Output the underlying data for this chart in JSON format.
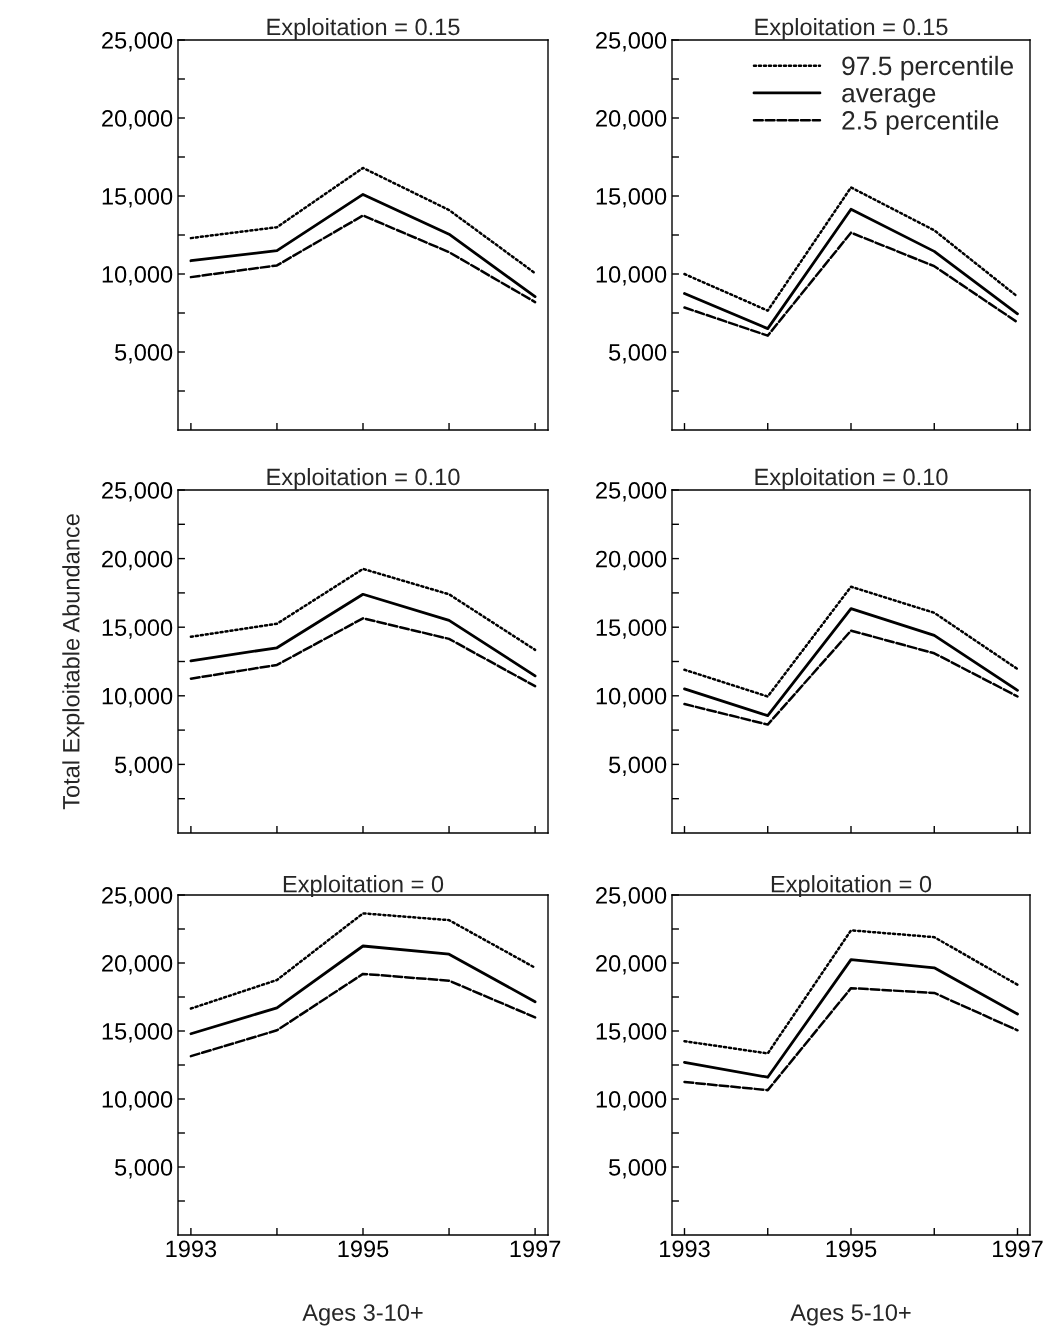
{
  "chart_data": [
    {
      "type": "line",
      "title": "Exploitation = 0.15",
      "x": [
        1993,
        1994,
        1995,
        1996,
        1997
      ],
      "xlim": [
        1992.85,
        1997.15
      ],
      "xticks": [
        {
          "value": 1993,
          "label": null
        },
        {
          "value": 1994,
          "label": null
        },
        {
          "value": 1995,
          "label": null
        },
        {
          "value": 1996,
          "label": null
        },
        {
          "value": 1997,
          "label": null
        }
      ],
      "ylim": [
        0,
        25000
      ],
      "yticks": [
        {
          "value": 2500,
          "label": null
        },
        {
          "value": 5000,
          "label": "5,000"
        },
        {
          "value": 7500,
          "label": null
        },
        {
          "value": 10000,
          "label": "10,000"
        },
        {
          "value": 12500,
          "label": null
        },
        {
          "value": 15000,
          "label": "15,000"
        },
        {
          "value": 17500,
          "label": null
        },
        {
          "value": 20000,
          "label": "20,000"
        },
        {
          "value": 22500,
          "label": null
        },
        {
          "value": 25000,
          "label": "25,000"
        }
      ],
      "tick_labels": "y",
      "grid": false,
      "legend": false,
      "series": [
        {
          "color": "#000000",
          "line_style": "dotted",
          "values": [
            12300,
            13000,
            16800,
            14100,
            10050
          ]
        },
        {
          "color": "#000000",
          "line_style": "solid",
          "values": [
            10850,
            11500,
            15100,
            12550,
            8550
          ]
        },
        {
          "color": "#000000",
          "line_style": "dashed",
          "values": [
            9800,
            10550,
            13750,
            11400,
            8200
          ]
        }
      ]
    },
    {
      "type": "line",
      "title": "Exploitation = 0.15",
      "x": [
        1993,
        1994,
        1995,
        1996,
        1997
      ],
      "xlim": [
        1992.85,
        1997.15
      ],
      "xticks": [
        {
          "value": 1993,
          "label": null
        },
        {
          "value": 1994,
          "label": null
        },
        {
          "value": 1995,
          "label": null
        },
        {
          "value": 1996,
          "label": null
        },
        {
          "value": 1997,
          "label": null
        }
      ],
      "ylim": [
        0,
        25000
      ],
      "yticks": [
        {
          "value": 2500,
          "label": null
        },
        {
          "value": 5000,
          "label": "5,000"
        },
        {
          "value": 7500,
          "label": null
        },
        {
          "value": 10000,
          "label": "10,000"
        },
        {
          "value": 12500,
          "label": null
        },
        {
          "value": 15000,
          "label": "15,000"
        },
        {
          "value": 17500,
          "label": null
        },
        {
          "value": 20000,
          "label": "20,000"
        },
        {
          "value": 22500,
          "label": null
        },
        {
          "value": 25000,
          "label": "25,000"
        }
      ],
      "tick_labels": "y",
      "grid": false,
      "legend": "top right",
      "series": [
        {
          "name": "97.5 percentile",
          "color": "#000000",
          "line_style": "dotted",
          "values": [
            10000,
            7650,
            15550,
            12800,
            8550
          ]
        },
        {
          "name": "average",
          "color": "#000000",
          "line_style": "solid",
          "values": [
            8750,
            6500,
            14150,
            11450,
            7450
          ]
        },
        {
          "name": "2.5 percentile",
          "color": "#000000",
          "line_style": "dashed",
          "values": [
            7850,
            6050,
            12650,
            10500,
            6900
          ]
        }
      ]
    },
    {
      "type": "line",
      "title": "Exploitation = 0.10",
      "ylabel": "Total Exploitable Abundance",
      "x": [
        1993,
        1994,
        1995,
        1996,
        1997
      ],
      "xlim": [
        1992.85,
        1997.15
      ],
      "xticks": [
        {
          "value": 1993,
          "label": null
        },
        {
          "value": 1994,
          "label": null
        },
        {
          "value": 1995,
          "label": null
        },
        {
          "value": 1996,
          "label": null
        },
        {
          "value": 1997,
          "label": null
        }
      ],
      "ylim": [
        0,
        25000
      ],
      "yticks": [
        {
          "value": 2500,
          "label": null
        },
        {
          "value": 5000,
          "label": "5,000"
        },
        {
          "value": 7500,
          "label": null
        },
        {
          "value": 10000,
          "label": "10,000"
        },
        {
          "value": 12500,
          "label": null
        },
        {
          "value": 15000,
          "label": "15,000"
        },
        {
          "value": 17500,
          "label": null
        },
        {
          "value": 20000,
          "label": "20,000"
        },
        {
          "value": 22500,
          "label": null
        },
        {
          "value": 25000,
          "label": "25,000"
        }
      ],
      "tick_labels": "y",
      "grid": false,
      "legend": false,
      "series": [
        {
          "color": "#000000",
          "line_style": "dotted",
          "values": [
            14300,
            15250,
            19250,
            17400,
            13350
          ]
        },
        {
          "color": "#000000",
          "line_style": "solid",
          "values": [
            12550,
            13500,
            17400,
            15500,
            11450
          ]
        },
        {
          "color": "#000000",
          "line_style": "dashed",
          "values": [
            11250,
            12250,
            15650,
            14150,
            10700
          ]
        }
      ]
    },
    {
      "type": "line",
      "title": "Exploitation = 0.10",
      "x": [
        1993,
        1994,
        1995,
        1996,
        1997
      ],
      "xlim": [
        1992.85,
        1997.15
      ],
      "xticks": [
        {
          "value": 1993,
          "label": null
        },
        {
          "value": 1994,
          "label": null
        },
        {
          "value": 1995,
          "label": null
        },
        {
          "value": 1996,
          "label": null
        },
        {
          "value": 1997,
          "label": null
        }
      ],
      "ylim": [
        0,
        25000
      ],
      "yticks": [
        {
          "value": 2500,
          "label": null
        },
        {
          "value": 5000,
          "label": "5,000"
        },
        {
          "value": 7500,
          "label": null
        },
        {
          "value": 10000,
          "label": "10,000"
        },
        {
          "value": 12500,
          "label": null
        },
        {
          "value": 15000,
          "label": "15,000"
        },
        {
          "value": 17500,
          "label": null
        },
        {
          "value": 20000,
          "label": "20,000"
        },
        {
          "value": 22500,
          "label": null
        },
        {
          "value": 25000,
          "label": "25,000"
        }
      ],
      "tick_labels": "y",
      "grid": false,
      "legend": false,
      "series": [
        {
          "color": "#000000",
          "line_style": "dotted",
          "values": [
            11900,
            9950,
            17950,
            16050,
            11950
          ]
        },
        {
          "color": "#000000",
          "line_style": "solid",
          "values": [
            10500,
            8550,
            16350,
            14400,
            10400
          ]
        },
        {
          "color": "#000000",
          "line_style": "dashed",
          "values": [
            9400,
            7900,
            14750,
            13100,
            9950
          ]
        }
      ]
    },
    {
      "type": "line",
      "title": "Exploitation = 0",
      "xlabel": "Ages 3-10+",
      "x": [
        1993,
        1994,
        1995,
        1996,
        1997
      ],
      "xlim": [
        1992.85,
        1997.15
      ],
      "xticks": [
        1993,
        {
          "value": 1994,
          "label": null
        },
        1995,
        {
          "value": 1996,
          "label": null
        },
        1997
      ],
      "ylim": [
        0,
        25000
      ],
      "yticks": [
        {
          "value": 2500,
          "label": null
        },
        {
          "value": 5000,
          "label": "5,000"
        },
        {
          "value": 7500,
          "label": null
        },
        {
          "value": 10000,
          "label": "10,000"
        },
        {
          "value": 12500,
          "label": null
        },
        {
          "value": 15000,
          "label": "15,000"
        },
        {
          "value": 17500,
          "label": null
        },
        {
          "value": 20000,
          "label": "20,000"
        },
        {
          "value": 22500,
          "label": null
        },
        {
          "value": 25000,
          "label": "25,000"
        }
      ],
      "grid": false,
      "legend": false,
      "series": [
        {
          "color": "#000000",
          "line_style": "dotted",
          "values": [
            16650,
            18750,
            23650,
            23150,
            19650
          ]
        },
        {
          "color": "#000000",
          "line_style": "solid",
          "values": [
            14800,
            16700,
            21250,
            20650,
            17150
          ]
        },
        {
          "color": "#000000",
          "line_style": "dashed",
          "values": [
            13150,
            15050,
            19200,
            18700,
            16000
          ]
        }
      ]
    },
    {
      "type": "line",
      "title": "Exploitation = 0",
      "xlabel": "Ages 5-10+",
      "x": [
        1993,
        1994,
        1995,
        1996,
        1997
      ],
      "xlim": [
        1992.85,
        1997.15
      ],
      "xticks": [
        1993,
        {
          "value": 1994,
          "label": null
        },
        1995,
        {
          "value": 1996,
          "label": null
        },
        1997
      ],
      "ylim": [
        0,
        25000
      ],
      "yticks": [
        {
          "value": 2500,
          "label": null
        },
        {
          "value": 5000,
          "label": "5,000"
        },
        {
          "value": 7500,
          "label": null
        },
        {
          "value": 10000,
          "label": "10,000"
        },
        {
          "value": 12500,
          "label": null
        },
        {
          "value": 15000,
          "label": "15,000"
        },
        {
          "value": 17500,
          "label": null
        },
        {
          "value": 20000,
          "label": "20,000"
        },
        {
          "value": 22500,
          "label": null
        },
        {
          "value": 25000,
          "label": "25,000"
        }
      ],
      "grid": false,
      "legend": false,
      "series": [
        {
          "color": "#000000",
          "line_style": "dotted",
          "values": [
            14250,
            13350,
            22400,
            21900,
            18400
          ]
        },
        {
          "color": "#000000",
          "line_style": "solid",
          "values": [
            12700,
            11600,
            20250,
            19650,
            16250
          ]
        },
        {
          "color": "#000000",
          "line_style": "dashed",
          "values": [
            11250,
            10650,
            18150,
            17800,
            15050
          ]
        }
      ]
    }
  ]
}
